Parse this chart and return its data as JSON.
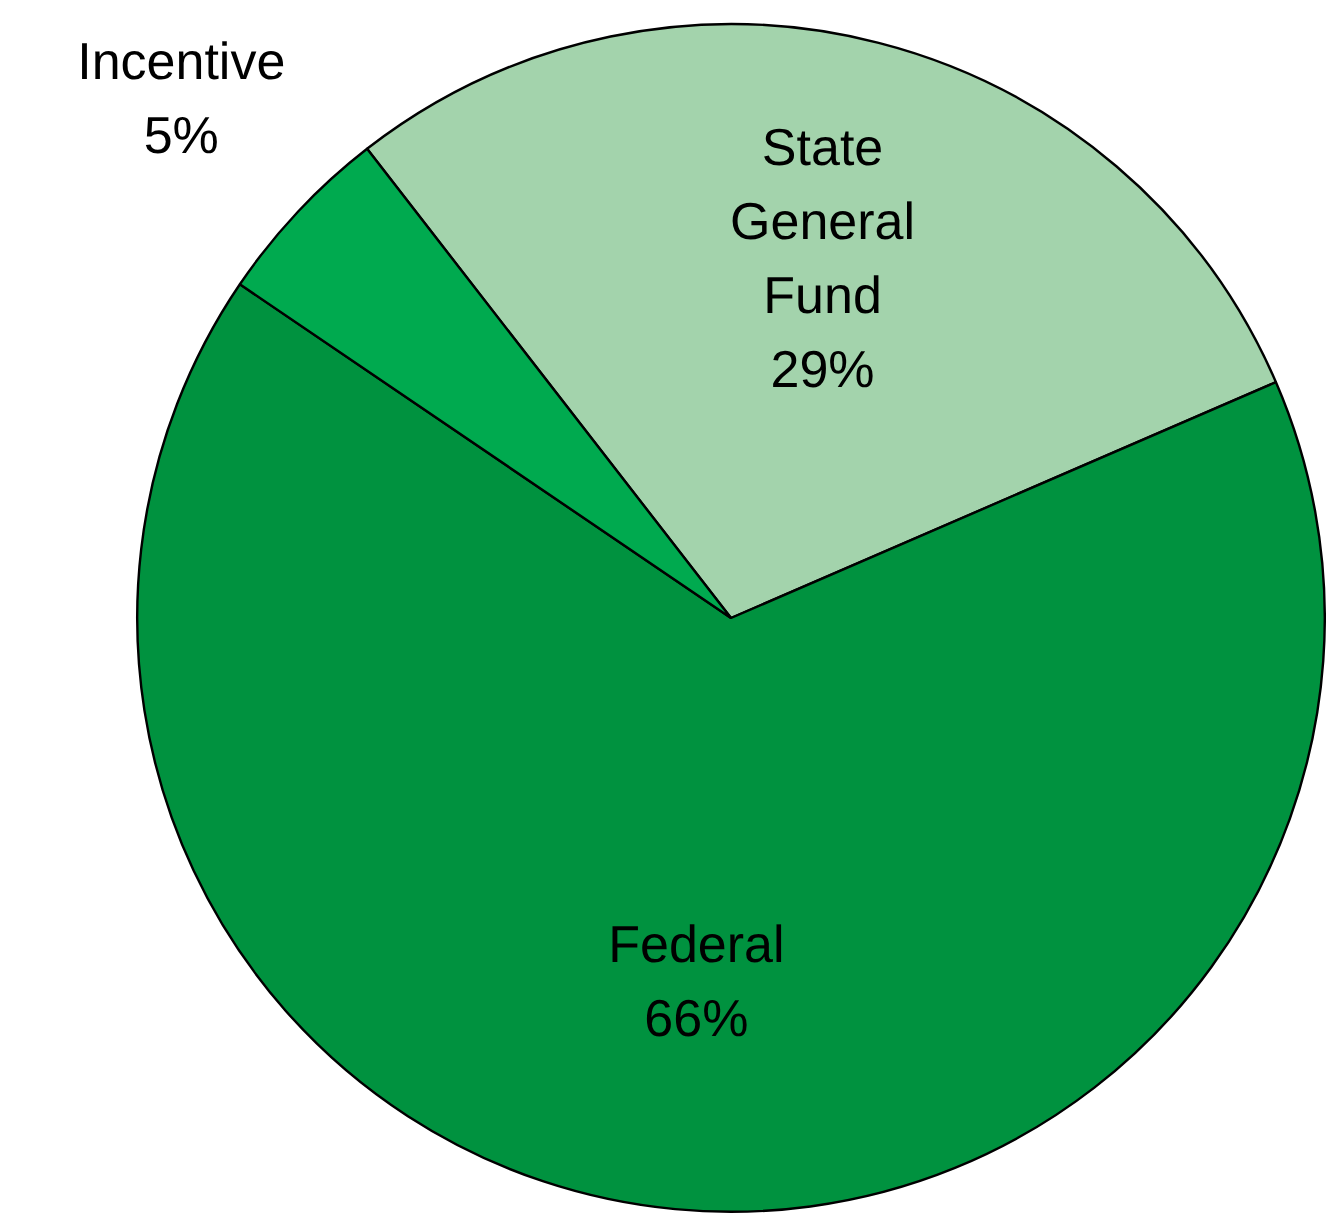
{
  "chart_data": {
    "type": "pie",
    "categories": [
      "State General Fund",
      "Federal",
      "Incentive"
    ],
    "values": [
      29,
      66,
      5
    ],
    "colors": [
      "#a3d3ac",
      "#00923f",
      "#00aa4f"
    ],
    "value_labels": [
      "29%",
      "66%",
      "5%"
    ],
    "legend": false
  }
}
